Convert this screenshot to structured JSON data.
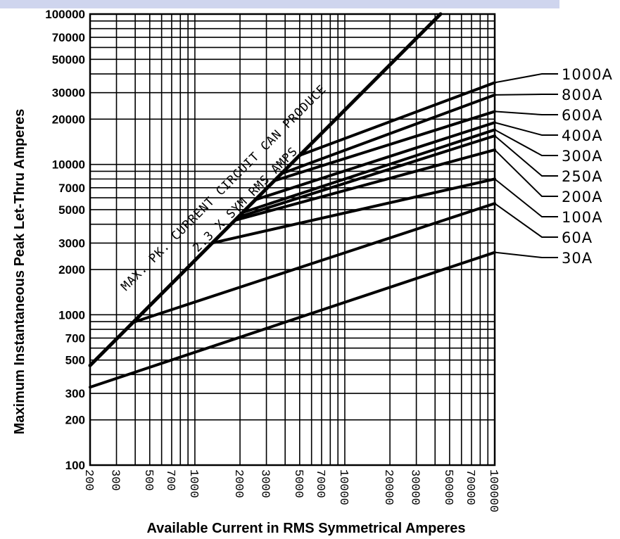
{
  "chart_data": {
    "type": "line",
    "xlabel": "Available Current in RMS Symmetrical Amperes",
    "ylabel": "Maximum Instantaneous Peak Let-Thru Amperes",
    "x_scale": "log",
    "y_scale": "log",
    "xlim": [
      200,
      100000
    ],
    "ylim": [
      100,
      100000
    ],
    "grid": true,
    "x_grid": [
      200,
      300,
      400,
      500,
      600,
      700,
      800,
      900,
      1000,
      2000,
      3000,
      4000,
      5000,
      6000,
      7000,
      8000,
      9000,
      10000,
      20000,
      30000,
      40000,
      50000,
      60000,
      70000,
      80000,
      90000,
      100000
    ],
    "y_grid": [
      100,
      200,
      300,
      400,
      500,
      600,
      700,
      800,
      900,
      1000,
      2000,
      3000,
      4000,
      5000,
      6000,
      7000,
      8000,
      9000,
      10000,
      20000,
      30000,
      40000,
      50000,
      60000,
      70000,
      80000,
      90000,
      100000
    ],
    "x_ticks": [
      "200",
      "300",
      "500",
      "700",
      "1000",
      "2000",
      "3000",
      "5000",
      "7000",
      "10000",
      "20000",
      "30000",
      "50000",
      "70000",
      "100000"
    ],
    "x_tick_values": [
      200,
      300,
      500,
      700,
      1000,
      2000,
      3000,
      5000,
      7000,
      10000,
      20000,
      30000,
      50000,
      70000,
      100000
    ],
    "y_ticks": [
      "100",
      "200",
      "300",
      "500",
      "700",
      "1000",
      "2000",
      "3000",
      "5000",
      "7000",
      "10000",
      "20000",
      "30000",
      "50000",
      "70000",
      "100000"
    ],
    "y_tick_values": [
      100,
      200,
      300,
      500,
      700,
      1000,
      2000,
      3000,
      5000,
      7000,
      10000,
      20000,
      30000,
      50000,
      70000,
      100000
    ],
    "max_peak_line": {
      "x": [
        200,
        43500
      ],
      "y": [
        460,
        100000
      ]
    },
    "annotation_lines": [
      "MAX. PK. CURRENT CIRCUIT CAN PRODUCE",
      "2.3 X SYM RMS AMPS"
    ],
    "series": [
      {
        "name": "1000A",
        "x": [
          5000,
          100000
        ],
        "y": [
          11500,
          35000
        ]
      },
      {
        "name": "800A",
        "x": [
          3800,
          100000
        ],
        "y": [
          8700,
          29000
        ]
      },
      {
        "name": "600A",
        "x": [
          3400,
          100000
        ],
        "y": [
          7800,
          22500
        ]
      },
      {
        "name": "400A",
        "x": [
          2500,
          100000
        ],
        "y": [
          5800,
          19000
        ]
      },
      {
        "name": "300A",
        "x": [
          2100,
          100000
        ],
        "y": [
          4800,
          17000
        ]
      },
      {
        "name": "250A",
        "x": [
          2000,
          100000
        ],
        "y": [
          4500,
          15500
        ]
      },
      {
        "name": "200A",
        "x": [
          1850,
          100000
        ],
        "y": [
          4250,
          12500
        ]
      },
      {
        "name": "100A",
        "x": [
          1300,
          100000
        ],
        "y": [
          3000,
          8000
        ]
      },
      {
        "name": "60A",
        "x": [
          400,
          100000
        ],
        "y": [
          900,
          5500
        ]
      },
      {
        "name": "30A",
        "x": [
          200,
          100000
        ],
        "y": [
          330,
          2600
        ]
      }
    ],
    "series_label_order": [
      "1000A",
      "800A",
      "600A",
      "400A",
      "300A",
      "250A",
      "200A",
      "100A",
      "60A",
      "30A"
    ]
  }
}
